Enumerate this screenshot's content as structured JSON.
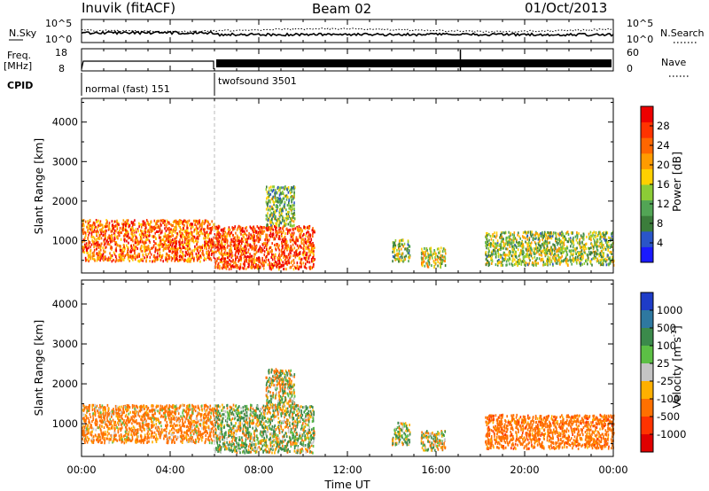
{
  "header": {
    "station": "Inuvik (fitACF)",
    "beam": "Beam 02",
    "date": "01/Oct/2013"
  },
  "top_panels": {
    "nsky_label": "N.Sky",
    "nsky_ticks": [
      "10^5",
      "10^0"
    ],
    "nsearch_label": "N.Search",
    "nsearch_ticks": [
      "10^5",
      "10^0"
    ],
    "freq_label": "Freq.",
    "freq_unit": "[MHz]",
    "freq_ticks": [
      "18",
      "8"
    ],
    "nave_label": "Nave",
    "nave_ticks": [
      "60",
      "0"
    ],
    "cpid_label": "CPID",
    "cpid_modes": [
      {
        "name": "normal (fast) 151",
        "start_hour": 0,
        "end_hour": 6
      },
      {
        "name": "twofsound 3501",
        "start_hour": 6,
        "end_hour": 24
      }
    ]
  },
  "x_axis": {
    "label": "Time UT",
    "ticks": [
      "00:00",
      "04:00",
      "08:00",
      "12:00",
      "16:00",
      "20:00",
      "00:00"
    ],
    "range_hours": [
      0,
      24
    ]
  },
  "y_axis": {
    "label": "Slant Range [km]",
    "ticks": [
      "1000",
      "2000",
      "3000",
      "4000"
    ],
    "range_km": [
      180,
      4600
    ]
  },
  "power_scale": {
    "label": "Power [dB]",
    "ticks": [
      "4",
      "8",
      "12",
      "16",
      "20",
      "24",
      "28"
    ],
    "range": [
      0,
      32
    ],
    "colors": [
      "#1a1aff",
      "#2a55c8",
      "#3b7d3b",
      "#52a555",
      "#8ccc36",
      "#ffd000",
      "#ff9b00",
      "#ff6600",
      "#ff3300",
      "#ee0000"
    ]
  },
  "velocity_scale": {
    "label": "Velocity [m s",
    "label_sup": "-1",
    "label_end": "]",
    "ticks": [
      "1000",
      "500",
      "100",
      "25",
      "-25",
      "-100",
      "-500",
      "-1000"
    ],
    "colors": [
      "#1e3cc8",
      "#2e78a0",
      "#3b8a4b",
      "#5cbf45",
      "#c4c4c4",
      "#ffb000",
      "#ff7000",
      "#ff3300",
      "#e00000"
    ]
  },
  "chart_data": {
    "type": "heatmap",
    "title": "",
    "xlabel": "Time UT",
    "ylabel": "Slant Range [km]",
    "xlim": [
      0,
      24
    ],
    "ylim": [
      180,
      4600
    ],
    "panels": [
      {
        "name": "power",
        "colorbar": "Power [dB]",
        "scatter_regions": [
          {
            "t_start": 0.0,
            "t_end": 6.0,
            "range_low": 500,
            "range_high": 1550,
            "value": 24
          },
          {
            "t_start": 6.0,
            "t_end": 10.5,
            "range_low": 300,
            "range_high": 1400,
            "value": 26
          },
          {
            "t_start": 8.3,
            "t_end": 9.6,
            "range_low": 1400,
            "range_high": 2400,
            "value": 12
          },
          {
            "t_start": 14.0,
            "t_end": 14.8,
            "range_low": 500,
            "range_high": 1050,
            "value": 14
          },
          {
            "t_start": 15.3,
            "t_end": 16.4,
            "range_low": 350,
            "range_high": 850,
            "value": 16
          },
          {
            "t_start": 18.2,
            "t_end": 24.0,
            "range_low": 400,
            "range_high": 1250,
            "value": 14
          }
        ]
      },
      {
        "name": "velocity",
        "colorbar": "Velocity [m s-1]",
        "scatter_regions": [
          {
            "t_start": 0.0,
            "t_end": 6.0,
            "range_low": 550,
            "range_high": 1500,
            "value": -200
          },
          {
            "t_start": 6.0,
            "t_end": 10.5,
            "range_low": 300,
            "range_high": 1500,
            "value": 60
          },
          {
            "t_start": 8.3,
            "t_end": 9.6,
            "range_low": 1400,
            "range_high": 2400,
            "value": 20
          },
          {
            "t_start": 14.0,
            "t_end": 14.8,
            "range_low": 500,
            "range_high": 1050,
            "value": 60
          },
          {
            "t_start": 15.3,
            "t_end": 16.4,
            "range_low": 350,
            "range_high": 850,
            "value": 30
          },
          {
            "t_start": 18.2,
            "t_end": 24.0,
            "range_low": 400,
            "range_high": 1250,
            "value": -300
          }
        ]
      }
    ]
  }
}
